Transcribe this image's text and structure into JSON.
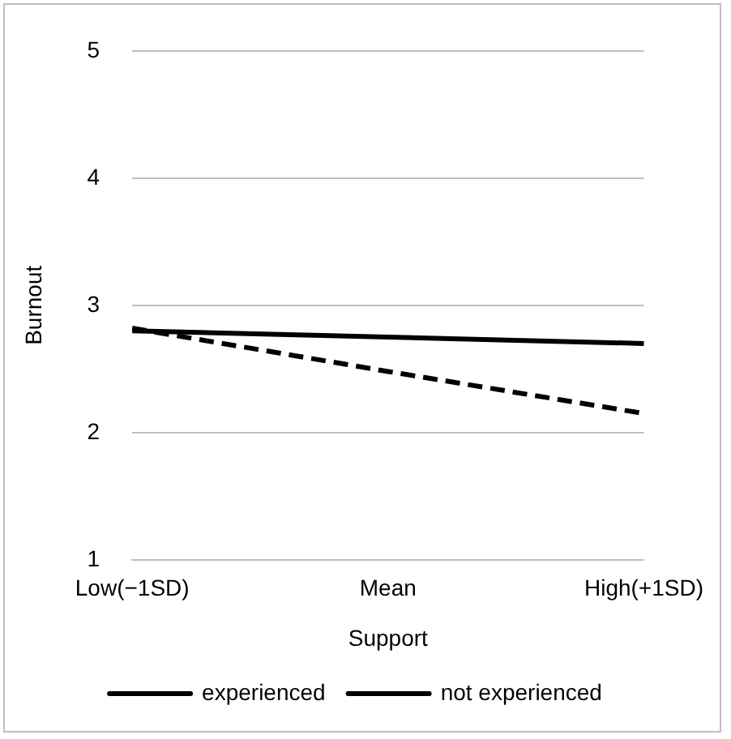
{
  "chart_data": {
    "type": "line",
    "xlabel": "Support",
    "ylabel": "Burnout",
    "categories": [
      "Low(−1SD)",
      "Mean",
      "High(+1SD)"
    ],
    "series": [
      {
        "name": "experienced",
        "color": "#000000",
        "values": [
          2.8,
          2.75,
          2.7
        ],
        "line_style": "solid"
      },
      {
        "name": "not experienced",
        "color": "#000000",
        "values": [
          2.82,
          2.48,
          2.15
        ],
        "line_style": "dashed"
      }
    ],
    "ylim": [
      1,
      5
    ],
    "yticks": [
      1,
      2,
      3,
      4,
      5
    ],
    "grid": "y",
    "legend": "bottom",
    "marker": "none"
  }
}
